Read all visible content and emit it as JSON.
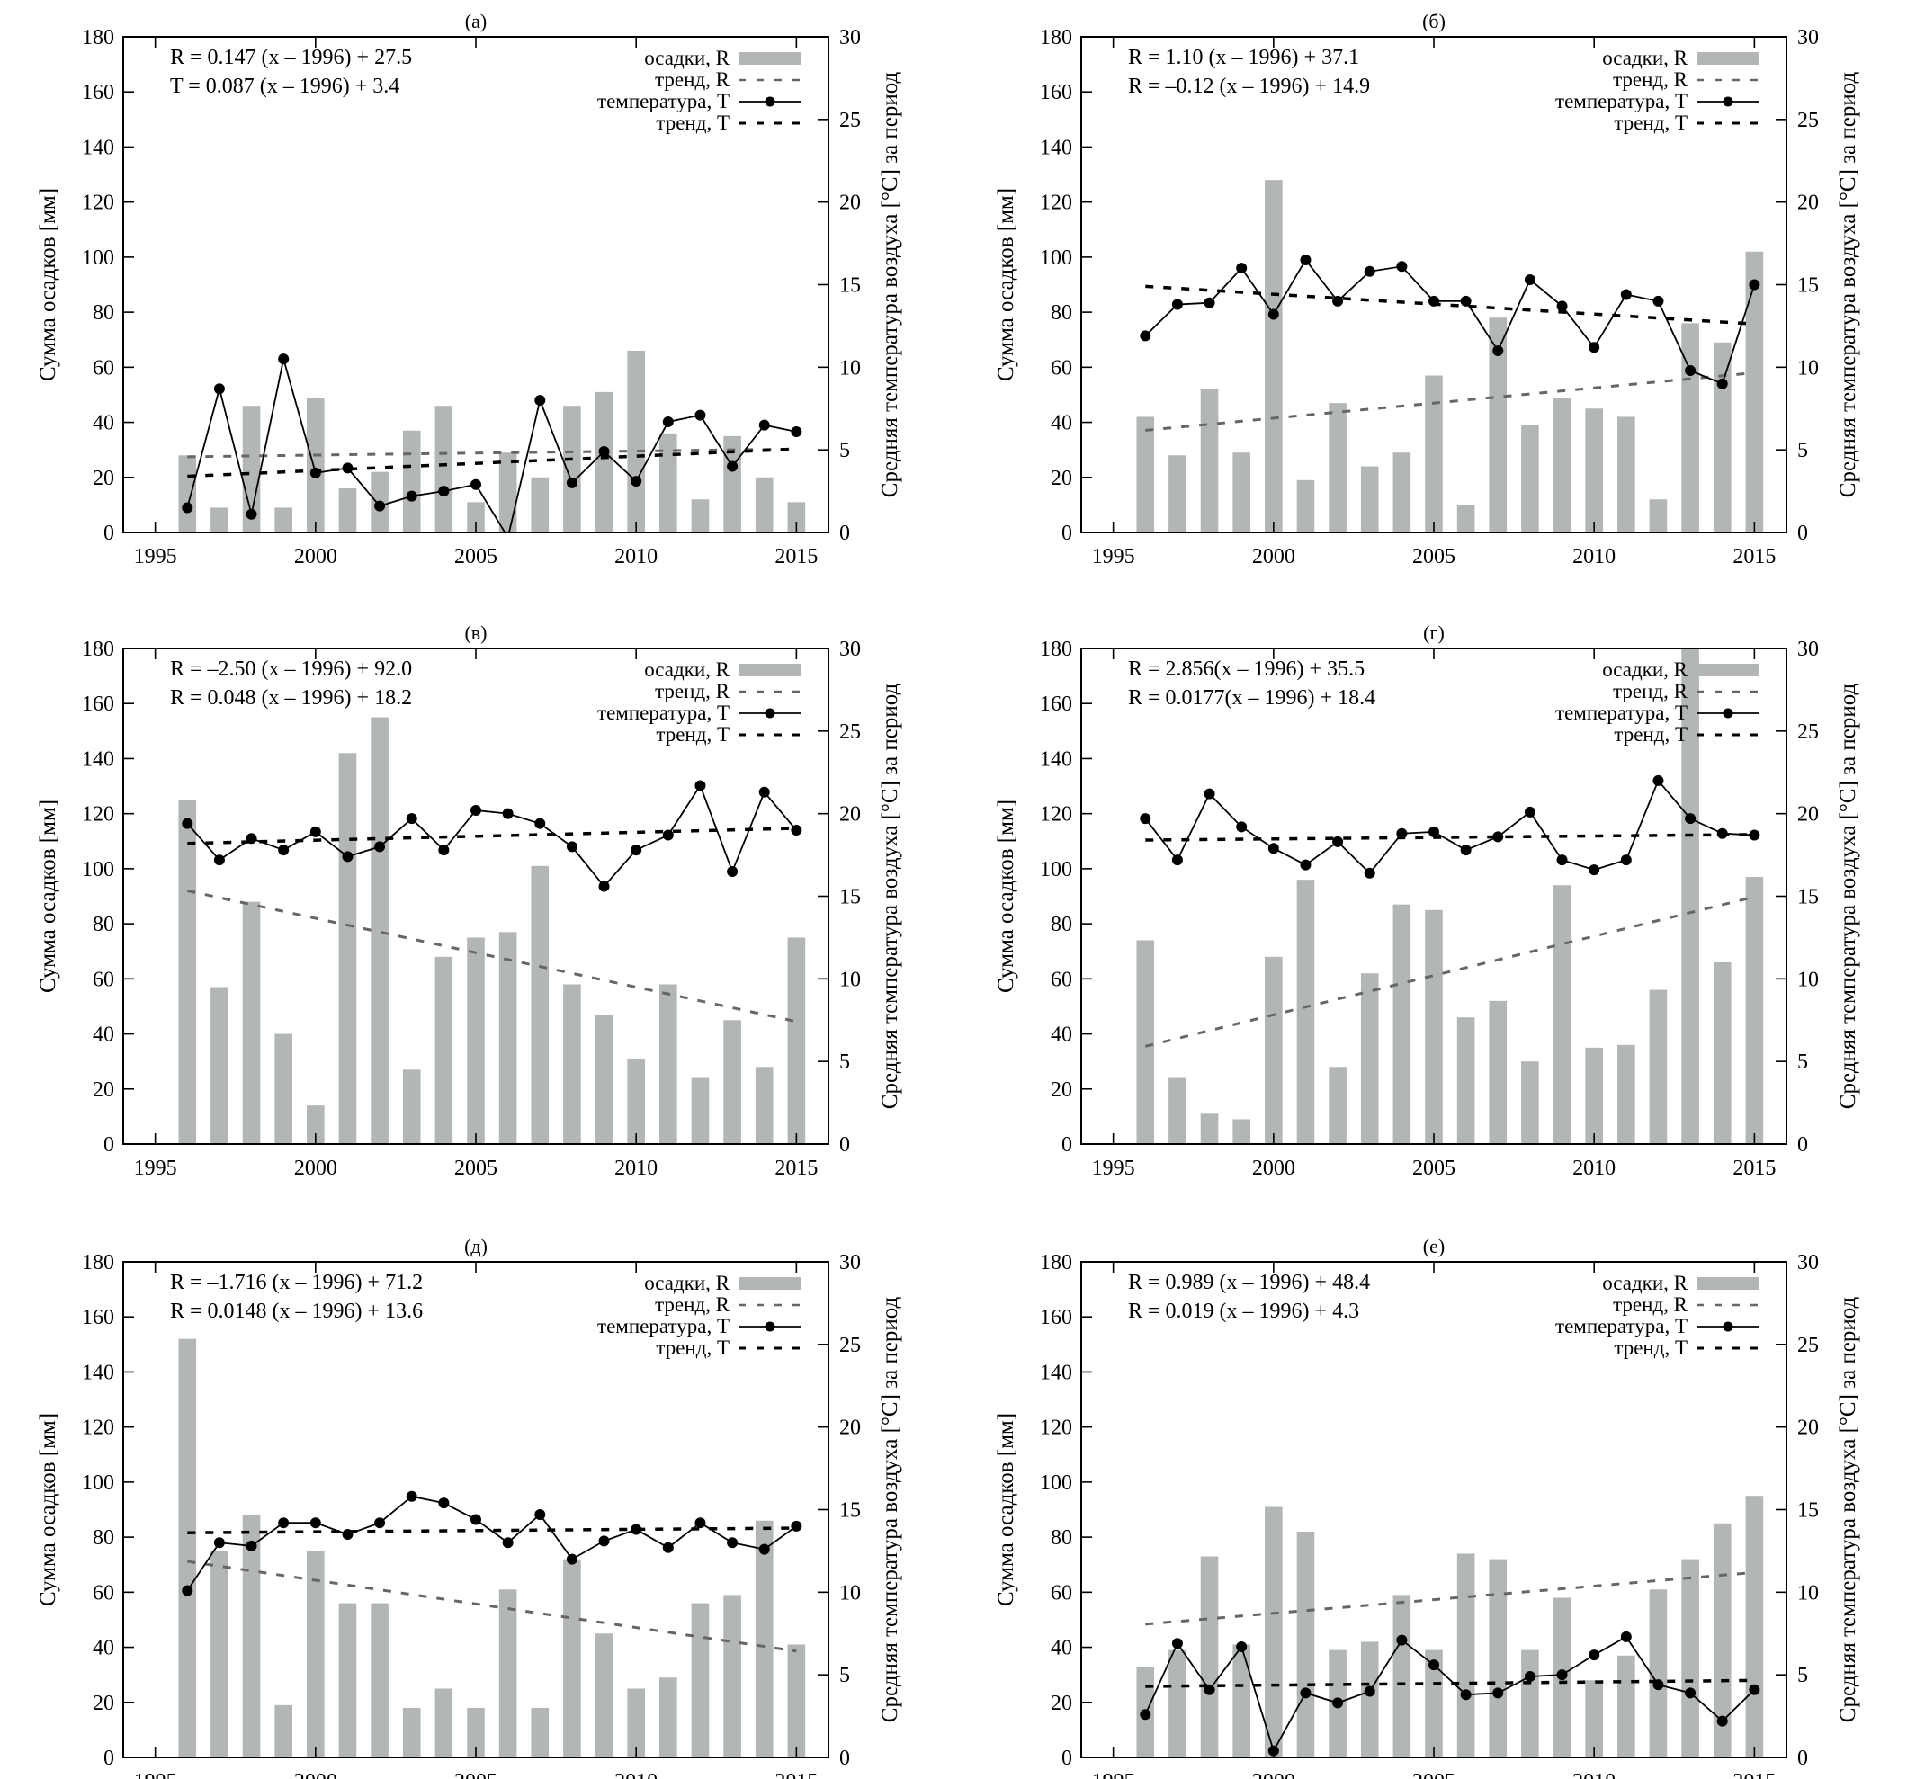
{
  "chart_data": [
    {
      "type": "bar+line",
      "title": "(а)",
      "equations": [
        "R = 0.147 (x – 1996) + 27.5",
        "T = 0.087 (x – 1996) + 3.4"
      ],
      "precip": [
        28,
        9,
        46,
        9,
        49,
        16,
        22,
        37,
        46,
        11,
        29,
        20,
        46,
        51,
        66,
        36,
        12,
        35,
        20,
        11
      ],
      "temp": [
        1.5,
        8.7,
        1.1,
        10.5,
        3.6,
        3.9,
        1.6,
        2.2,
        2.5,
        2.9,
        -0.3,
        8.0,
        3.0,
        4.9,
        3.1,
        6.7,
        7.1,
        4.0,
        6.5,
        6.1
      ],
      "trend_R": {
        "slope": 0.147,
        "intercept": 27.5
      },
      "trend_T": {
        "slope": 0.087,
        "intercept": 3.4
      }
    },
    {
      "type": "bar+line",
      "title": "(б)",
      "equations": [
        "R = 1.10 (x – 1996) + 37.1",
        "R = –0.12 (x – 1996) + 14.9"
      ],
      "precip": [
        42,
        28,
        52,
        29,
        128,
        19,
        47,
        24,
        29,
        57,
        10,
        78,
        39,
        49,
        45,
        42,
        12,
        76,
        69,
        102
      ],
      "temp": [
        11.9,
        13.8,
        13.9,
        16.0,
        13.2,
        16.5,
        14.0,
        15.8,
        16.1,
        14.0,
        14.0,
        11.0,
        15.3,
        13.7,
        11.2,
        14.4,
        14.0,
        9.8,
        9.0,
        15.0
      ],
      "trend_R": {
        "slope": 1.1,
        "intercept": 37.1
      },
      "trend_T": {
        "slope": -0.12,
        "intercept": 14.9
      }
    },
    {
      "type": "bar+line",
      "title": "(в)",
      "equations": [
        "R = –2.50 (x – 1996) + 92.0",
        "R = 0.048 (x – 1996) + 18.2"
      ],
      "precip": [
        125,
        57,
        88,
        40,
        14,
        142,
        155,
        27,
        68,
        75,
        77,
        101,
        58,
        47,
        31,
        58,
        24,
        45,
        28,
        75
      ],
      "temp": [
        19.4,
        17.2,
        18.5,
        17.8,
        18.9,
        17.4,
        18.0,
        19.7,
        17.8,
        20.2,
        20.0,
        19.4,
        18.0,
        15.6,
        17.8,
        18.7,
        21.7,
        16.5,
        21.3,
        19.0
      ],
      "trend_R": {
        "slope": -2.5,
        "intercept": 92.0
      },
      "trend_T": {
        "slope": 0.048,
        "intercept": 18.2
      }
    },
    {
      "type": "bar+line",
      "title": "(г)",
      "equations": [
        "R = 2.856(x – 1996) + 35.5",
        "R = 0.0177(x – 1996) + 18.4"
      ],
      "precip": [
        74,
        24,
        11,
        9,
        68,
        96,
        28,
        62,
        87,
        85,
        46,
        52,
        30,
        94,
        35,
        36,
        56,
        185,
        66,
        97
      ],
      "temp": [
        19.7,
        17.2,
        21.2,
        19.2,
        17.9,
        16.9,
        18.3,
        16.4,
        18.8,
        18.9,
        17.8,
        18.6,
        20.1,
        17.2,
        16.6,
        17.2,
        22.0,
        19.7,
        18.8,
        18.7
      ],
      "trend_R": {
        "slope": 2.856,
        "intercept": 35.5
      },
      "trend_T": {
        "slope": 0.0177,
        "intercept": 18.4
      }
    },
    {
      "type": "bar+line",
      "title": "(д)",
      "equations": [
        "R = –1.716 (x – 1996) + 71.2",
        "R = 0.0148 (x – 1996) + 13.6"
      ],
      "precip": [
        152,
        75,
        88,
        19,
        75,
        56,
        56,
        18,
        25,
        18,
        61,
        18,
        72,
        45,
        25,
        29,
        56,
        59,
        86,
        41
      ],
      "temp": [
        10.1,
        13.0,
        12.8,
        14.2,
        14.2,
        13.5,
        14.2,
        15.8,
        15.4,
        14.4,
        13.0,
        14.7,
        12.0,
        13.1,
        13.8,
        12.7,
        14.2,
        13.0,
        12.6,
        14.0
      ],
      "trend_R": {
        "slope": -1.716,
        "intercept": 71.2
      },
      "trend_T": {
        "slope": 0.0148,
        "intercept": 13.6
      }
    },
    {
      "type": "bar+line",
      "title": "(е)",
      "equations": [
        "R = 0.989 (x – 1996) + 48.4",
        "R = 0.019 (x – 1996) + 4.3"
      ],
      "precip": [
        33,
        39,
        73,
        41,
        91,
        82,
        39,
        42,
        59,
        39,
        74,
        72,
        39,
        58,
        28,
        37,
        61,
        72,
        85,
        95
      ],
      "temp": [
        2.6,
        6.9,
        4.1,
        6.7,
        0.4,
        3.9,
        3.3,
        4.0,
        7.1,
        5.6,
        3.8,
        3.9,
        4.9,
        5.0,
        6.2,
        7.3,
        4.4,
        3.9,
        2.2,
        4.1
      ],
      "trend_R": {
        "slope": 0.989,
        "intercept": 48.4
      },
      "trend_T": {
        "slope": 0.019,
        "intercept": 4.3
      }
    }
  ],
  "shared": {
    "years": [
      1996,
      1997,
      1998,
      1999,
      2000,
      2001,
      2002,
      2003,
      2004,
      2005,
      2006,
      2007,
      2008,
      2009,
      2010,
      2011,
      2012,
      2013,
      2014,
      2015
    ],
    "ylabel_left": "Сумма осадков [мм]",
    "ylabel_right": "Средняя температура воздуха [°C] за период",
    "xlim": [
      1994,
      2016
    ],
    "ylim_left": [
      0,
      180
    ],
    "ylim_right": [
      0,
      30
    ],
    "xticks": [
      1995,
      2000,
      2005,
      2010,
      2015
    ],
    "yticks_left": [
      0,
      20,
      40,
      60,
      80,
      100,
      120,
      140,
      160,
      180
    ],
    "yticks_right": [
      0,
      5,
      10,
      15,
      20,
      25,
      30
    ],
    "legend": [
      "осадки, R",
      "тренд, R",
      "температура, T",
      "тренд, T"
    ],
    "legend_position": "top-right",
    "grid": false,
    "colors": {
      "bars": "#b3b6b6",
      "trend_R": "#666666",
      "temperature": "#000000",
      "trend_T": "#000000"
    }
  }
}
